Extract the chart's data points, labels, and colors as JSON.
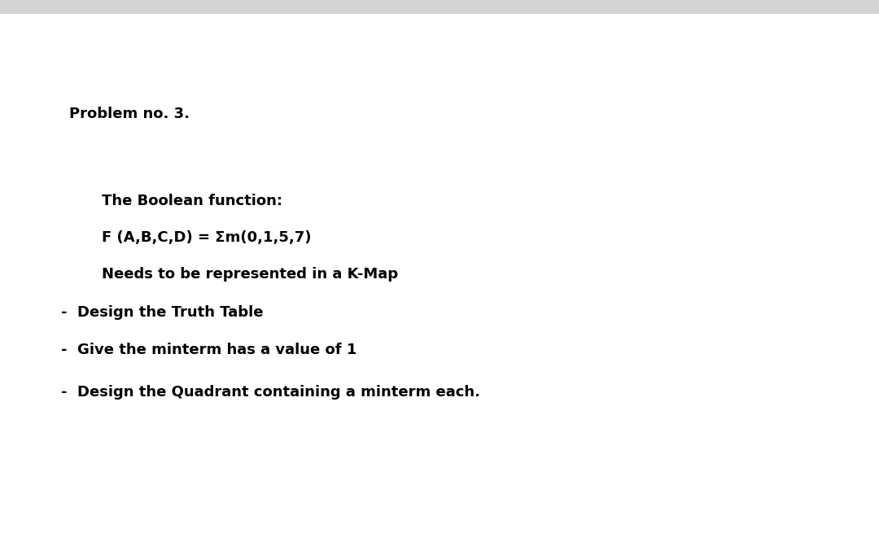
{
  "background_color": "#ffffff",
  "top_bar_color": "#d4d4d4",
  "top_bar_height": 0.025,
  "title": "Problem no. 3.",
  "title_fontsize": 13,
  "title_fontweight": "bold",
  "lines": [
    {
      "text": "The Boolean function:",
      "fontsize": 13,
      "fontweight": "bold"
    },
    {
      "text": "F (A,B,C,D) = Σm(0,1,5,7)",
      "fontsize": 13,
      "fontweight": "bold"
    },
    {
      "text": "Needs to be represented in a K-Map",
      "fontsize": 13,
      "fontweight": "bold"
    },
    {
      "text": "-  Design the Truth Table",
      "fontsize": 13,
      "fontweight": "bold"
    },
    {
      "text": "-  Give the minterm has a value of 1",
      "fontsize": 13,
      "fontweight": "bold"
    },
    {
      "text": "-  Design the Quadrant containing a minterm each.",
      "fontsize": 13,
      "fontweight": "bold"
    }
  ]
}
